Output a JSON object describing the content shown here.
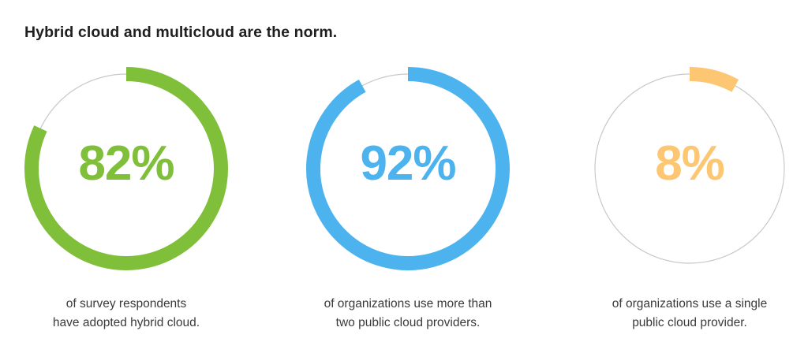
{
  "page": {
    "title": "Hybrid cloud and multicloud are the norm."
  },
  "chart_data": [
    {
      "type": "pie",
      "subtype": "donut",
      "value": 82,
      "label": "82%",
      "caption": [
        "of survey respondents",
        "have adopted hybrid cloud."
      ],
      "color": "#80bf3a",
      "track_color": "#c8c8c8"
    },
    {
      "type": "pie",
      "subtype": "donut",
      "value": 92,
      "label": "92%",
      "caption": [
        "of organizations use more than",
        "two public cloud providers."
      ],
      "color": "#4db3ee",
      "track_color": "#c8c8c8"
    },
    {
      "type": "pie",
      "subtype": "donut",
      "value": 8,
      "label": "8%",
      "caption": [
        "of organizations use a single",
        "public cloud provider."
      ],
      "color": "#fdc673",
      "track_color": "#c8c8c8"
    }
  ]
}
